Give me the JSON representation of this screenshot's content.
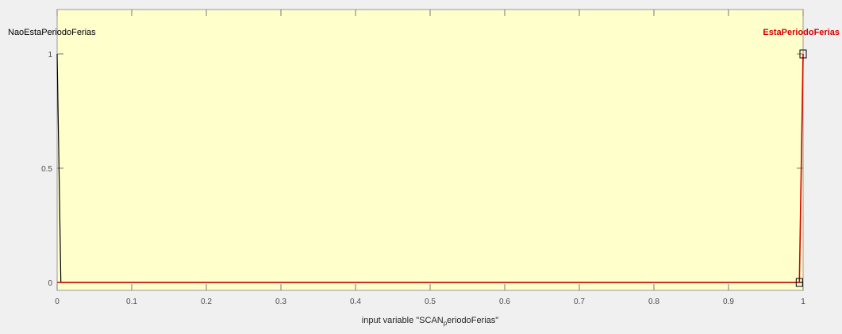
{
  "chart_data": {
    "type": "line",
    "title": "",
    "xlabel_parts": {
      "before": "input variable \"SCAN",
      "subscript": "p",
      "after": "eriodoFerias\""
    },
    "ylabel": "",
    "xlim": [
      0,
      1
    ],
    "ylim": [
      0,
      1
    ],
    "x_ticks": [
      0,
      0.1,
      0.2,
      0.3,
      0.4,
      0.5,
      0.6,
      0.7,
      0.8,
      0.9,
      1
    ],
    "x_tick_labels": [
      "0",
      "0.1",
      "0.2",
      "0.3",
      "0.4",
      "0.5",
      "0.6",
      "0.7",
      "0.8",
      "0.9",
      "1"
    ],
    "y_ticks": [
      0,
      0.5,
      1
    ],
    "y_tick_labels": [
      "0",
      "0.5",
      "1"
    ],
    "grid": false,
    "background_color": "#ffffcc",
    "series": [
      {
        "name": "NaoEstaPeriodoFerias",
        "color": "#000000",
        "x": [
          0,
          0.005,
          1
        ],
        "y": [
          1,
          0,
          0
        ]
      },
      {
        "name": "EstaPeriodoFerias",
        "color": "#d40000",
        "x": [
          0,
          0.995,
          1
        ],
        "y": [
          0,
          0,
          1
        ]
      }
    ]
  }
}
